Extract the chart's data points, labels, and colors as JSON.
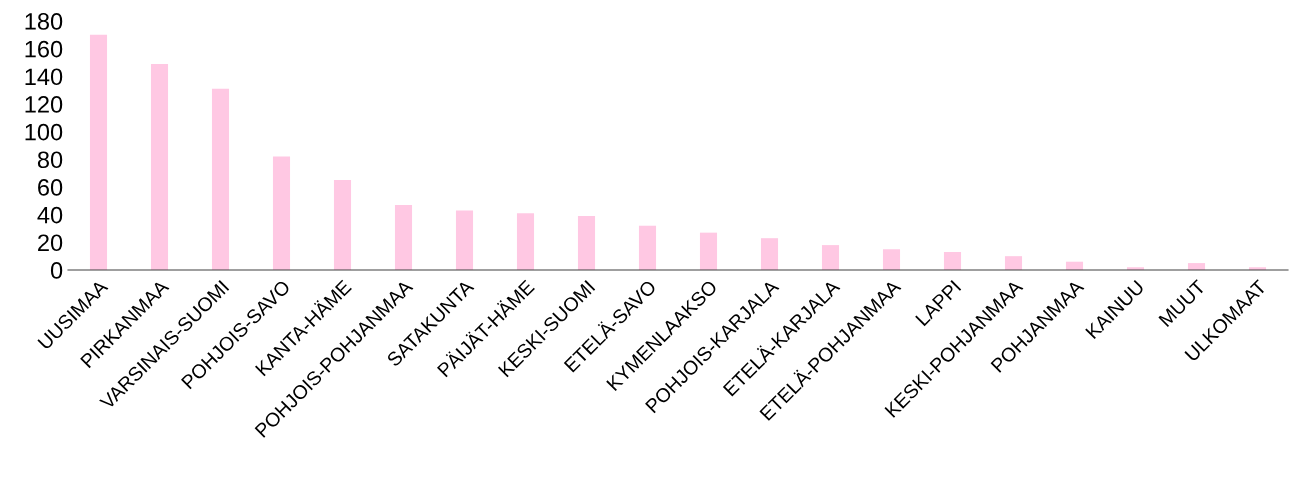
{
  "chart_data": {
    "type": "bar",
    "categories": [
      "UUSIMAA",
      "PIRKANMAA",
      "VARSINAIS-SUOMI",
      "POHJOIS-SAVO",
      "KANTA-HÄME",
      "POHJOIS-POHJANMAA",
      "SATAKUNTA",
      "PÄIJÄT-HÄME",
      "KESKI-SUOMI",
      "ETELÄ-SAVO",
      "KYMENLAAKSO",
      "POHJOIS-KARJALA",
      "ETELÄ-KARJALA",
      "ETELÄ-POHJANMAA",
      "LAPPI",
      "KESKI-POHJANMAA",
      "POHJANMAA",
      "KAINUU",
      "MUUT",
      "ULKOMAAT"
    ],
    "values": [
      170,
      149,
      131,
      82,
      65,
      47,
      43,
      41,
      39,
      32,
      27,
      23,
      18,
      15,
      13,
      10,
      6,
      2,
      5,
      2
    ],
    "color": "#ffc8e3",
    "ylim": [
      0,
      180
    ],
    "yticks": [
      0,
      20,
      40,
      60,
      80,
      100,
      120,
      140,
      160,
      180
    ],
    "grid": false,
    "legend": false
  }
}
